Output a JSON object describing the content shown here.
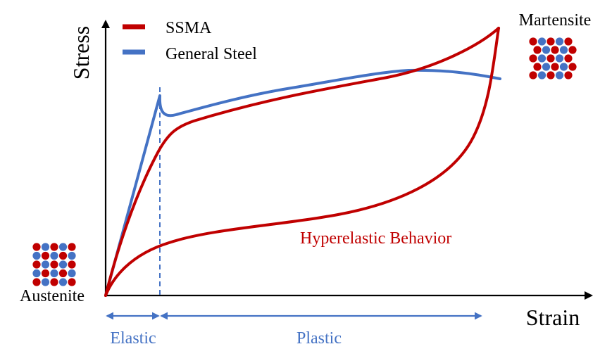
{
  "axes": {
    "y_label": "Stress",
    "x_label": "Strain"
  },
  "legend": {
    "items": [
      {
        "label": "SSMA",
        "color": "#c00000"
      },
      {
        "label": "General Steel",
        "color": "#4472c4"
      }
    ]
  },
  "phases": {
    "start": "Austenite",
    "end": "Martensite"
  },
  "annotation": {
    "text": "Hyperelastic Behavior",
    "color": "#c00000"
  },
  "regions": [
    {
      "label": "Elastic",
      "color": "#4472c4"
    },
    {
      "label": "Plastic",
      "color": "#4472c4"
    }
  ],
  "atom_colors": {
    "red": "#c00000",
    "blue": "#4472c4"
  }
}
